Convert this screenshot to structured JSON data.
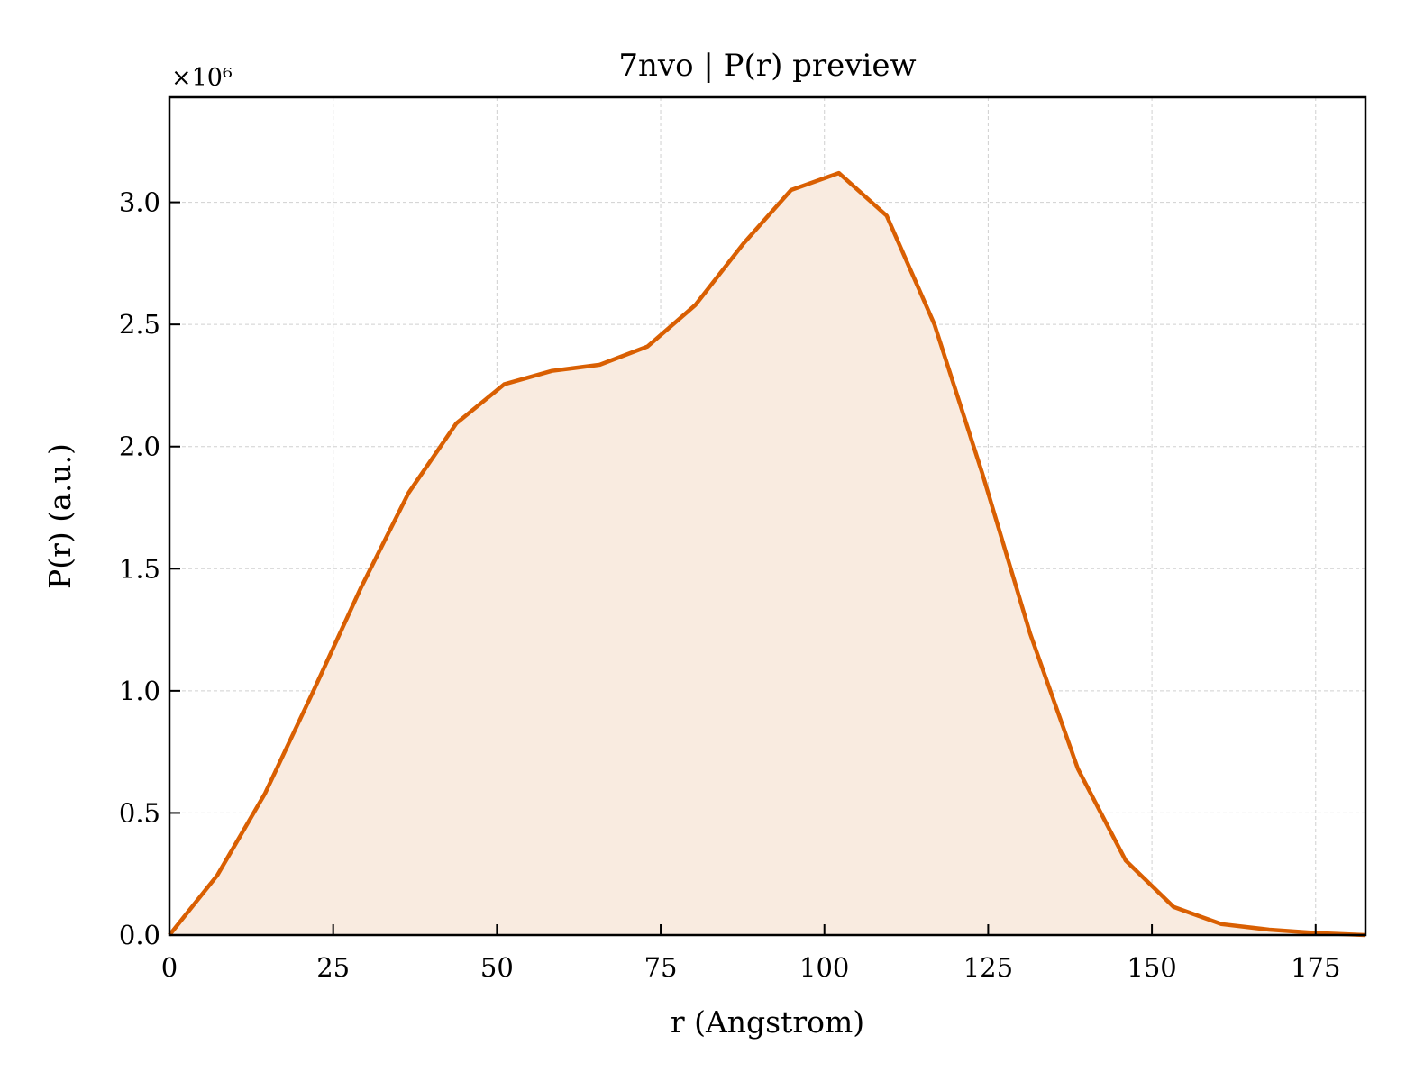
{
  "chart_data": {
    "type": "area",
    "title": "7nvo | P(r) preview",
    "xlabel": "r (Angstrom)",
    "ylabel": "P(r) (a.u.)",
    "y_multiplier_label": "×10⁶",
    "xlim": [
      0,
      182.6
    ],
    "ylim": [
      0,
      3.43
    ],
    "x_ticks": [
      0,
      25,
      50,
      75,
      100,
      125,
      150,
      175
    ],
    "x_tick_labels": [
      "0",
      "25",
      "50",
      "75",
      "100",
      "125",
      "150",
      "175"
    ],
    "y_ticks": [
      0.0,
      0.5,
      1.0,
      1.5,
      2.0,
      2.5,
      3.0
    ],
    "y_tick_labels": [
      "0.0",
      "0.5",
      "1.0",
      "1.5",
      "2.0",
      "2.5",
      "3.0"
    ],
    "grid": true,
    "series": [
      {
        "color": "#d95f02",
        "fill_color": "#f9ebe0",
        "x": [
          0,
          7.3,
          14.6,
          21.9,
          29.2,
          36.5,
          43.8,
          51.1,
          58.4,
          65.7,
          73.0,
          80.3,
          87.6,
          94.9,
          102.2,
          109.5,
          116.8,
          124.1,
          131.4,
          138.7,
          146.0,
          153.3,
          160.6,
          167.9,
          175.2,
          182.6
        ],
        "y": [
          0.0,
          0.245,
          0.58,
          0.995,
          1.42,
          1.81,
          2.095,
          2.255,
          2.31,
          2.335,
          2.41,
          2.58,
          2.83,
          3.05,
          3.12,
          2.945,
          2.5,
          1.89,
          1.235,
          0.68,
          0.305,
          0.115,
          0.045,
          0.022,
          0.008,
          0.0
        ]
      }
    ]
  }
}
